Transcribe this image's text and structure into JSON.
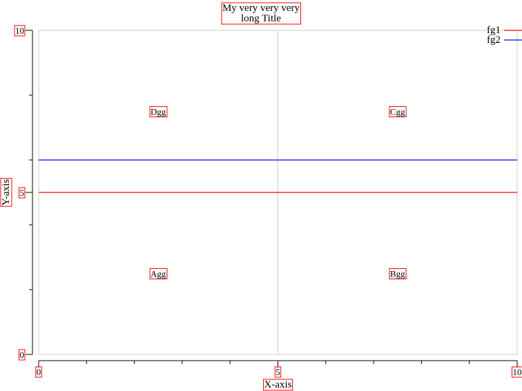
{
  "chart_data": {
    "type": "line",
    "title_lines": [
      "My very very very",
      "long Title"
    ],
    "xlabel": "X-axis",
    "ylabel": "Y-axis",
    "xlim": [
      0,
      10
    ],
    "ylim": [
      0,
      10
    ],
    "x_tick_labels": [
      {
        "value": 0,
        "label": "0"
      },
      {
        "value": 5,
        "label": "5"
      },
      {
        "value": 10,
        "label": "10"
      }
    ],
    "y_tick_labels": [
      {
        "value": 0,
        "label": "0"
      },
      {
        "value": 5,
        "label": "5"
      },
      {
        "value": 10,
        "label": "10"
      }
    ],
    "x_minor_ticks": [
      1,
      2,
      3,
      4,
      6,
      7,
      8,
      9
    ],
    "y_minor_ticks": [
      2,
      4,
      6,
      8
    ],
    "grid": {
      "x": [
        5
      ],
      "y": []
    },
    "series": [
      {
        "name": "fg1",
        "color": "#ff0000",
        "x": [
          0,
          10
        ],
        "y": [
          5,
          5
        ]
      },
      {
        "name": "fg2",
        "color": "#0000ff",
        "x": [
          0,
          10
        ],
        "y": [
          6,
          6
        ]
      }
    ],
    "legend_position": "top-right",
    "annotations": [
      {
        "text": "Dgg",
        "x": 2.5,
        "y": 7.5
      },
      {
        "text": "Cgg",
        "x": 7.5,
        "y": 7.5
      },
      {
        "text": "Agg",
        "x": 2.5,
        "y": 2.5
      },
      {
        "text": "Bgg",
        "x": 7.5,
        "y": 2.5
      }
    ]
  }
}
